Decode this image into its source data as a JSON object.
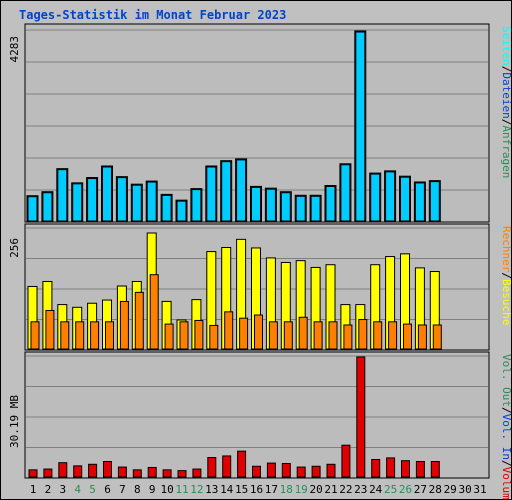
{
  "title": "Tages-Statistik im Monat Februar 2023",
  "colors": {
    "background": "#c0c0c0",
    "panel": "#bcbcbc",
    "grid": "#808080",
    "anfragen": "#00ccff",
    "dateien": "#00aadd",
    "seiten": "#00ffff",
    "besuche": "#ffff00",
    "rechner": "#ff8000",
    "vol_out": "#0044cc",
    "vol_in": "#2e8b57",
    "volumen": "#e00000",
    "label_blue": "#0044cc",
    "label_green": "#2e8b57"
  },
  "chart_data": [
    {
      "type": "bar",
      "panel": "top",
      "ymax_label": "4283",
      "ylim": [
        0,
        4283
      ],
      "categories": [
        "1",
        "2",
        "3",
        "4",
        "5",
        "6",
        "7",
        "8",
        "9",
        "10",
        "11",
        "12",
        "13",
        "14",
        "15",
        "16",
        "17",
        "18",
        "19",
        "20",
        "21",
        "22",
        "23",
        "24",
        "25",
        "26",
        "27",
        "28"
      ],
      "series": [
        {
          "name": "Anfragen",
          "values": [
            570,
            660,
            1180,
            860,
            980,
            1240,
            1000,
            830,
            900,
            600,
            470,
            730,
            1240,
            1360,
            1400,
            780,
            740,
            660,
            580,
            580,
            800,
            1290,
            4283,
            1080,
            1130,
            1010,
            880,
            910
          ]
        }
      ],
      "right_labels": [
        {
          "text": "Anfragen",
          "color": "#2e8b57"
        },
        {
          "text": "Dateien",
          "color": "#0044cc"
        },
        {
          "text": "Seiten",
          "color": "#00ffff"
        }
      ]
    },
    {
      "type": "bar",
      "panel": "middle",
      "ymax_label": "256",
      "ylim": [
        0,
        256
      ],
      "categories": [
        "1",
        "2",
        "3",
        "4",
        "5",
        "6",
        "7",
        "8",
        "9",
        "10",
        "11",
        "12",
        "13",
        "14",
        "15",
        "16",
        "17",
        "18",
        "19",
        "20",
        "21",
        "22",
        "23",
        "24",
        "25",
        "26",
        "27",
        "28"
      ],
      "series": [
        {
          "name": "Besuche",
          "values": [
            138,
            149,
            98,
            92,
            101,
            108,
            139,
            149,
            256,
            105,
            64,
            109,
            215,
            224,
            242,
            223,
            201,
            191,
            195,
            180,
            186,
            98,
            98,
            186,
            204,
            210,
            179,
            171
          ]
        },
        {
          "name": "Rechner",
          "values": [
            60,
            85,
            60,
            60,
            60,
            60,
            105,
            125,
            164,
            55,
            60,
            63,
            52,
            82,
            68,
            75,
            60,
            60,
            70,
            60,
            60,
            53,
            65,
            60,
            60,
            55,
            53,
            53
          ]
        }
      ],
      "right_labels": [
        {
          "text": "Besuche",
          "color": "#ffff00"
        },
        {
          "text": "Rechner",
          "color": "#ff8000"
        }
      ]
    },
    {
      "type": "bar",
      "panel": "bottom",
      "ymax_label": "30.19 MB",
      "ylim": [
        0,
        30.19
      ],
      "categories": [
        "1",
        "2",
        "3",
        "4",
        "5",
        "6",
        "7",
        "8",
        "9",
        "10",
        "11",
        "12",
        "13",
        "14",
        "15",
        "16",
        "17",
        "18",
        "19",
        "20",
        "21",
        "22",
        "23",
        "24",
        "25",
        "26",
        "27",
        "28"
      ],
      "series": [
        {
          "name": "Volumen",
          "values": [
            1.8,
            2.0,
            3.6,
            2.8,
            3.2,
            3.9,
            2.5,
            1.8,
            2.4,
            1.8,
            1.6,
            2.0,
            4.9,
            5.3,
            6.5,
            2.7,
            3.5,
            3.4,
            2.5,
            2.7,
            3.2,
            8.0,
            30.19,
            4.4,
            4.8,
            4.1,
            3.9,
            3.9
          ]
        }
      ],
      "right_labels": [
        {
          "text": "Volumen",
          "color": "#e00000"
        },
        {
          "text": "Vol. In",
          "color": "#0044cc"
        },
        {
          "text": "Vol. Out",
          "color": "#2e8b57"
        }
      ]
    }
  ],
  "x_axis": {
    "labels": [
      "1",
      "2",
      "3",
      "4",
      "5",
      "6",
      "7",
      "8",
      "9",
      "10",
      "11",
      "12",
      "13",
      "14",
      "15",
      "16",
      "17",
      "18",
      "19",
      "20",
      "21",
      "22",
      "23",
      "24",
      "25",
      "26",
      "27",
      "28",
      "29",
      "30",
      "31"
    ],
    "weekend_days": [
      "4",
      "5",
      "11",
      "12",
      "18",
      "19",
      "25",
      "26"
    ]
  }
}
